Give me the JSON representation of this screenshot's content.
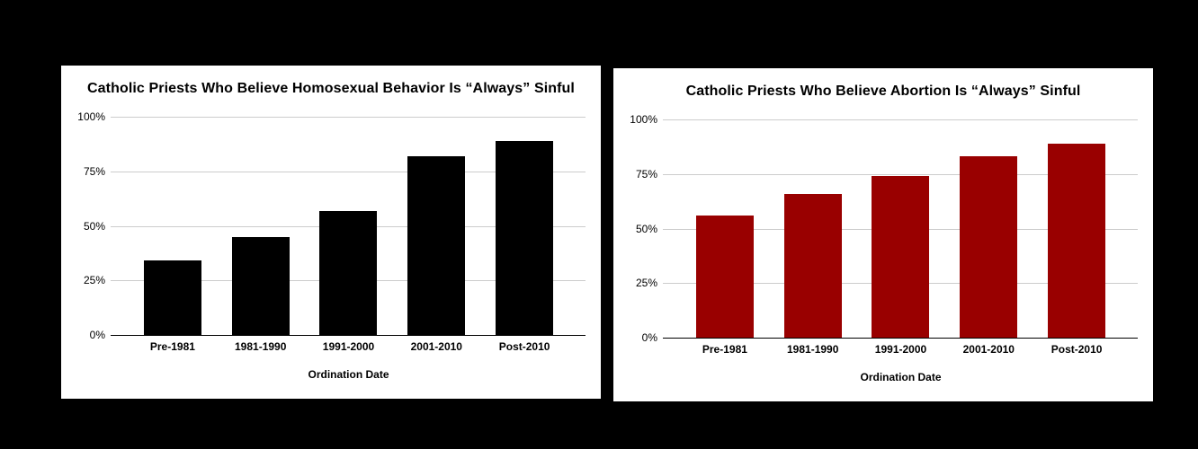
{
  "page": {
    "background_color": "#000000",
    "panel_color": "#ffffff"
  },
  "chart_data": [
    {
      "type": "bar",
      "title": "Catholic Priests Who Believe Homosexual Behavior Is “Always” Sinful",
      "xlabel": "Ordination Date",
      "ylabel": "",
      "categories": [
        "Pre-1981",
        "1981-1990",
        "1991-2000",
        "2001-2010",
        "Post-2010"
      ],
      "values": [
        34,
        45,
        57,
        82,
        89
      ],
      "unit": "%",
      "ylim": [
        0,
        100
      ],
      "yticks": [
        0,
        25,
        50,
        75,
        100
      ],
      "ytick_labels": [
        "0%",
        "25%",
        "50%",
        "75%",
        "100%"
      ],
      "bar_color": "#000000",
      "grid": true,
      "gridline_color": "#cccccc",
      "axis_line_color": "#000000",
      "legend": "none"
    },
    {
      "type": "bar",
      "title": "Catholic Priests Who Believe Abortion Is “Always” Sinful",
      "xlabel": "Ordination Date",
      "ylabel": "",
      "categories": [
        "Pre-1981",
        "1981-1990",
        "1991-2000",
        "2001-2010",
        "Post-2010"
      ],
      "values": [
        56,
        66,
        74,
        83,
        89
      ],
      "unit": "%",
      "ylim": [
        0,
        100
      ],
      "yticks": [
        0,
        25,
        50,
        75,
        100
      ],
      "ytick_labels": [
        "0%",
        "25%",
        "50%",
        "75%",
        "100%"
      ],
      "bar_color": "#990000",
      "grid": true,
      "gridline_color": "#cccccc",
      "axis_line_color": "#000000",
      "legend": "none"
    }
  ]
}
